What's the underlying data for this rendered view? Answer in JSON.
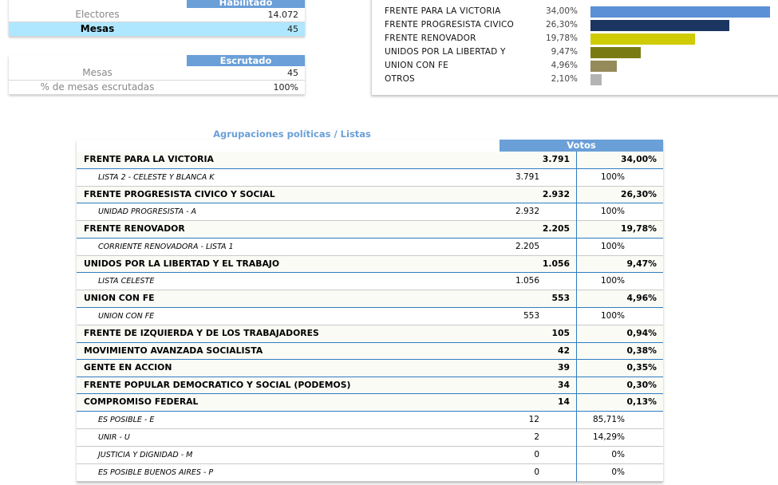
{
  "habilitado": {
    "header": "Habilitado",
    "rows": [
      {
        "label": "Electores",
        "value": "14.072"
      },
      {
        "label": "Mesas",
        "value": "45"
      }
    ]
  },
  "escrutado": {
    "header": "Escrutado",
    "rows": [
      {
        "label": "Mesas",
        "value": "45"
      },
      {
        "label": "% de mesas escrutadas",
        "value": "100%"
      }
    ]
  },
  "summary_chart": [
    {
      "name": "FRENTE PARA LA VICTORIA",
      "percent": "34,00%",
      "value": 34.0,
      "color": "#5b8fd6"
    },
    {
      "name": "FRENTE PROGRESISTA CIVICO",
      "percent": "26,30%",
      "value": 26.3,
      "color": "#1a3560"
    },
    {
      "name": "FRENTE RENOVADOR",
      "percent": "19,78%",
      "value": 19.78,
      "color": "#cfcc05"
    },
    {
      "name": "UNIDOS POR LA LIBERTAD Y",
      "percent": "9,47%",
      "value": 9.47,
      "color": "#7a7a12"
    },
    {
      "name": "UNION CON FE",
      "percent": "4,96%",
      "value": 4.96,
      "color": "#948a5a"
    },
    {
      "name": "OTROS",
      "percent": "2,10%",
      "value": 2.1,
      "color": "#b4b4b4"
    }
  ],
  "results": {
    "title": "Agrupaciones políticas / Listas",
    "votes_header": "Votos",
    "rows": [
      {
        "type": "party",
        "name": "FRENTE PARA LA VICTORIA",
        "votes": "3.791",
        "pct": "34,00%"
      },
      {
        "type": "list",
        "name": "LISTA 2 - CELESTE Y BLANCA K",
        "votes": "3.791",
        "pct": "100%"
      },
      {
        "type": "party",
        "name": "FRENTE PROGRESISTA CIVICO Y SOCIAL",
        "votes": "2.932",
        "pct": "26,30%"
      },
      {
        "type": "list",
        "name": "UNIDAD PROGRESISTA - A",
        "votes": "2.932",
        "pct": "100%"
      },
      {
        "type": "party",
        "name": "FRENTE RENOVADOR",
        "votes": "2.205",
        "pct": "19,78%"
      },
      {
        "type": "list",
        "name": "CORRIENTE RENOVADORA - LISTA 1",
        "votes": "2.205",
        "pct": "100%"
      },
      {
        "type": "party",
        "name": "UNIDOS POR LA LIBERTAD Y EL TRABAJO",
        "votes": "1.056",
        "pct": "9,47%"
      },
      {
        "type": "list",
        "name": "LISTA CELESTE",
        "votes": "1.056",
        "pct": "100%"
      },
      {
        "type": "party",
        "name": "UNION CON FE",
        "votes": "553",
        "pct": "4,96%"
      },
      {
        "type": "list",
        "name": "UNION CON FE",
        "votes": "553",
        "pct": "100%"
      },
      {
        "type": "party",
        "name": "FRENTE DE IZQUIERDA Y DE LOS TRABAJADORES",
        "votes": "105",
        "pct": "0,94%"
      },
      {
        "type": "party",
        "name": "MOVIMIENTO AVANZADA SOCIALISTA",
        "votes": "42",
        "pct": "0,38%"
      },
      {
        "type": "party",
        "name": "GENTE EN ACCION",
        "votes": "39",
        "pct": "0,35%"
      },
      {
        "type": "party",
        "name": "FRENTE POPULAR DEMOCRATICO Y SOCIAL (PODEMOS)",
        "votes": "34",
        "pct": "0,30%"
      },
      {
        "type": "party",
        "name": "COMPROMISO FEDERAL",
        "votes": "14",
        "pct": "0,13%"
      },
      {
        "type": "list",
        "name": "ES POSIBLE - E",
        "votes": "12",
        "pct": "85,71%"
      },
      {
        "type": "list",
        "name": "UNIR - U",
        "votes": "2",
        "pct": "14,29%"
      },
      {
        "type": "list",
        "name": "JUSTICIA Y DIGNIDAD - M",
        "votes": "0",
        "pct": "0%"
      },
      {
        "type": "list",
        "name": "ES POSIBLE BUENOS AIRES - P",
        "votes": "0",
        "pct": "0%"
      }
    ]
  }
}
